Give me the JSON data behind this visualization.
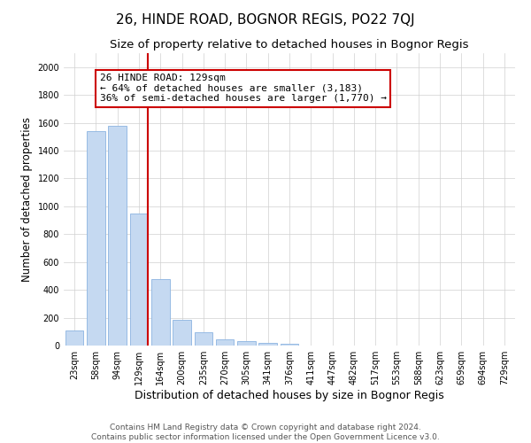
{
  "title": "26, HINDE ROAD, BOGNOR REGIS, PO22 7QJ",
  "subtitle": "Size of property relative to detached houses in Bognor Regis",
  "xlabel": "Distribution of detached houses by size in Bognor Regis",
  "ylabel": "Number of detached properties",
  "footer_line1": "Contains HM Land Registry data © Crown copyright and database right 2024.",
  "footer_line2": "Contains public sector information licensed under the Open Government Licence v3.0.",
  "categories": [
    "23sqm",
    "58sqm",
    "94sqm",
    "129sqm",
    "164sqm",
    "200sqm",
    "235sqm",
    "270sqm",
    "305sqm",
    "341sqm",
    "376sqm",
    "411sqm",
    "447sqm",
    "482sqm",
    "517sqm",
    "553sqm",
    "588sqm",
    "623sqm",
    "659sqm",
    "694sqm",
    "729sqm"
  ],
  "values": [
    110,
    1540,
    1580,
    950,
    480,
    185,
    95,
    45,
    30,
    20,
    15,
    0,
    0,
    0,
    0,
    0,
    0,
    0,
    0,
    0,
    0
  ],
  "bar_color": "#c5d9f1",
  "bar_edge_color": "#8cb4e1",
  "vline_x_idx": 3,
  "vline_color": "#cc0000",
  "annotation_line1": "26 HINDE ROAD: 129sqm",
  "annotation_line2": "← 64% of detached houses are smaller (3,183)",
  "annotation_line3": "36% of semi-detached houses are larger (1,770) →",
  "annotation_box_color": "#ffffff",
  "annotation_box_edge": "#cc0000",
  "ylim": [
    0,
    2100
  ],
  "yticks": [
    0,
    200,
    400,
    600,
    800,
    1000,
    1200,
    1400,
    1600,
    1800,
    2000
  ],
  "background_color": "#ffffff",
  "grid_color": "#d0d0d0",
  "title_fontsize": 11,
  "subtitle_fontsize": 9.5,
  "ylabel_fontsize": 8.5,
  "xlabel_fontsize": 9,
  "tick_fontsize": 7,
  "annotation_fontsize": 8,
  "footer_fontsize": 6.5
}
